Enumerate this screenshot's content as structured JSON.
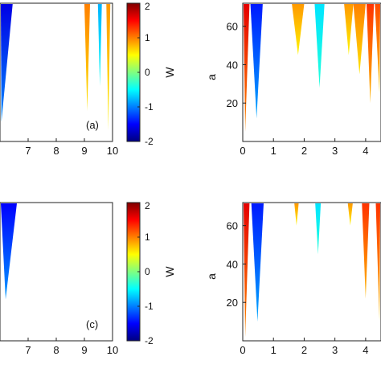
{
  "chart_data": [
    {
      "type": "heatmap",
      "panel": "(a)",
      "xlim": [
        6,
        10
      ],
      "x_ticks": [
        "7",
        "8",
        "9",
        "10"
      ],
      "ylabel": "",
      "colorbar": {
        "label": "W",
        "range": [
          -2,
          2
        ],
        "ticks": [
          "2",
          "1",
          "0",
          "-1",
          "-2"
        ]
      },
      "regions": [
        {
          "x_center": 6.05,
          "half_width_top": 0.4,
          "tip_y_frac": 0.86,
          "value": -1.6
        },
        {
          "x_center": 9.1,
          "half_width_top": 0.1,
          "tip_y_frac": 0.78,
          "value": 1.0
        },
        {
          "x_center": 9.55,
          "half_width_top": 0.07,
          "tip_y_frac": 0.6,
          "value": -0.8
        },
        {
          "x_center": 9.85,
          "half_width_top": 0.07,
          "tip_y_frac": 0.92,
          "value": 0.9
        }
      ]
    },
    {
      "type": "heatmap",
      "panel": "",
      "xlim": [
        0,
        4.5
      ],
      "x_ticks": [
        "0",
        "1",
        "2",
        "3",
        "4"
      ],
      "ylabel": "a",
      "ylim": [
        0,
        72
      ],
      "y_ticks": [
        "20",
        "40",
        "60"
      ],
      "regions": [
        {
          "x_center": 0.08,
          "half_width_top": 0.14,
          "tip_y": 5,
          "value": 1.6
        },
        {
          "x_center": 0.45,
          "half_width_top": 0.2,
          "tip_y": 12,
          "value": -1.4
        },
        {
          "x_center": 1.8,
          "half_width_top": 0.2,
          "tip_y": 45,
          "value": 0.9
        },
        {
          "x_center": 2.5,
          "half_width_top": 0.16,
          "tip_y": 28,
          "value": -0.6
        },
        {
          "x_center": 3.45,
          "half_width_top": 0.15,
          "tip_y": 45,
          "value": 0.9
        },
        {
          "x_center": 3.8,
          "half_width_top": 0.2,
          "tip_y": 35,
          "value": 1.0
        },
        {
          "x_center": 4.15,
          "half_width_top": 0.12,
          "tip_y": 20,
          "value": 1.3
        },
        {
          "x_center": 4.45,
          "half_width_top": 0.15,
          "tip_y": 25,
          "value": 1.2
        }
      ]
    },
    {
      "type": "heatmap",
      "panel": "(c)",
      "xlim": [
        6,
        10
      ],
      "x_ticks": [
        "7",
        "8",
        "9",
        "10"
      ],
      "ylabel": "",
      "colorbar": {
        "label": "W",
        "range": [
          -2,
          2
        ],
        "ticks": [
          "2",
          "1",
          "0",
          "-1",
          "-2"
        ]
      },
      "regions": [
        {
          "x_center": 6.2,
          "half_width_top": 0.4,
          "tip_y_frac": 0.7,
          "value": -1.5
        }
      ]
    },
    {
      "type": "heatmap",
      "panel": "",
      "xlim": [
        0,
        4.5
      ],
      "x_ticks": [
        "0",
        "1",
        "2",
        "3",
        "4"
      ],
      "ylabel": "a",
      "ylim": [
        0,
        72
      ],
      "y_ticks": [
        "20",
        "40",
        "60"
      ],
      "regions": [
        {
          "x_center": 0.08,
          "half_width_top": 0.14,
          "tip_y": 2,
          "value": 1.6
        },
        {
          "x_center": 0.48,
          "half_width_top": 0.2,
          "tip_y": 10,
          "value": -1.4
        },
        {
          "x_center": 1.75,
          "half_width_top": 0.07,
          "tip_y": 60,
          "value": 0.9
        },
        {
          "x_center": 2.45,
          "half_width_top": 0.09,
          "tip_y": 45,
          "value": -0.6
        },
        {
          "x_center": 3.5,
          "half_width_top": 0.08,
          "tip_y": 60,
          "value": 0.9
        },
        {
          "x_center": 4.0,
          "half_width_top": 0.12,
          "tip_y": 22,
          "value": 1.3
        },
        {
          "x_center": 4.45,
          "half_width_top": 0.12,
          "tip_y": 10,
          "value": 1.3
        }
      ]
    }
  ]
}
